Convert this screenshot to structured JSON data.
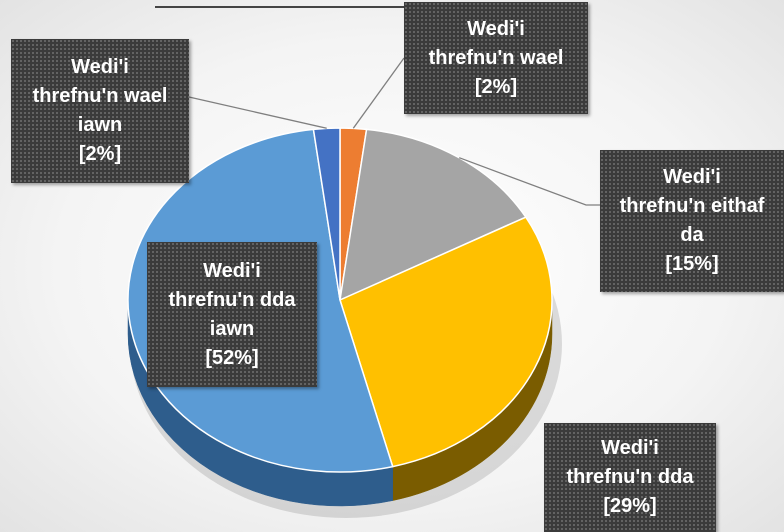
{
  "chart_data": {
    "type": "pie",
    "title": "",
    "slices": [
      {
        "label": "Wedi'i threfnu'n wael",
        "value": 2,
        "display": "[2%]",
        "color": "#ED7D31",
        "dark": "#9A4A16"
      },
      {
        "label": "Wedi'i threfnu'n eithaf da",
        "value": 15,
        "display": "[15%]",
        "color": "#A5A5A5",
        "dark": "#6B6B6B"
      },
      {
        "label": "Wedi'i threfnu'n dda",
        "value": 29,
        "display": "[29%]",
        "color": "#FFC000",
        "dark": "#7A5C00"
      },
      {
        "label": "Wedi'i threfnu'n dda iawn",
        "value": 52,
        "display": "[52%]",
        "color": "#5B9BD5",
        "dark": "#2E5D8C"
      },
      {
        "label": "Wedi'i threfnu'n wael iawn",
        "value": 2,
        "display": "[2%]",
        "color": "#4472C4",
        "dark": "#2A4780"
      }
    ],
    "label_text": [
      "Wedi'i\nthrefnu'n wael\n[2%]",
      "Wedi'i\nthrefnu'n eithaf\nda\n[15%]",
      "Wedi'i\nthrefnu'n dda\n[29%]",
      "Wedi'i\nthrefnu'n dda\niawn\n[52%]",
      "Wedi'i\nthrefnu'n wael\niawn\n[2%]"
    ],
    "legend": "none"
  }
}
